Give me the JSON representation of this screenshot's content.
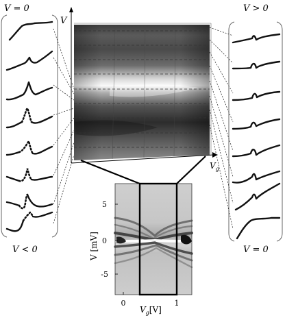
{
  "left_panel": {
    "top_label": "V = 0",
    "bottom_label": "V < 0"
  },
  "right_panel": {
    "top_label": "V > 0",
    "bottom_label": "V = 0"
  },
  "main_plot": {
    "y_axis_label": "V",
    "x_axis_label": "V",
    "x_axis_label_sub": "g"
  },
  "inset_plot": {
    "y_axis_label": "V [mV]",
    "x_axis_label": "V",
    "x_axis_label_sub": "g",
    "x_axis_unit": "[V]",
    "y_ticks": [
      "5",
      "0",
      "-5"
    ],
    "x_ticks": [
      "0",
      "1"
    ]
  }
}
